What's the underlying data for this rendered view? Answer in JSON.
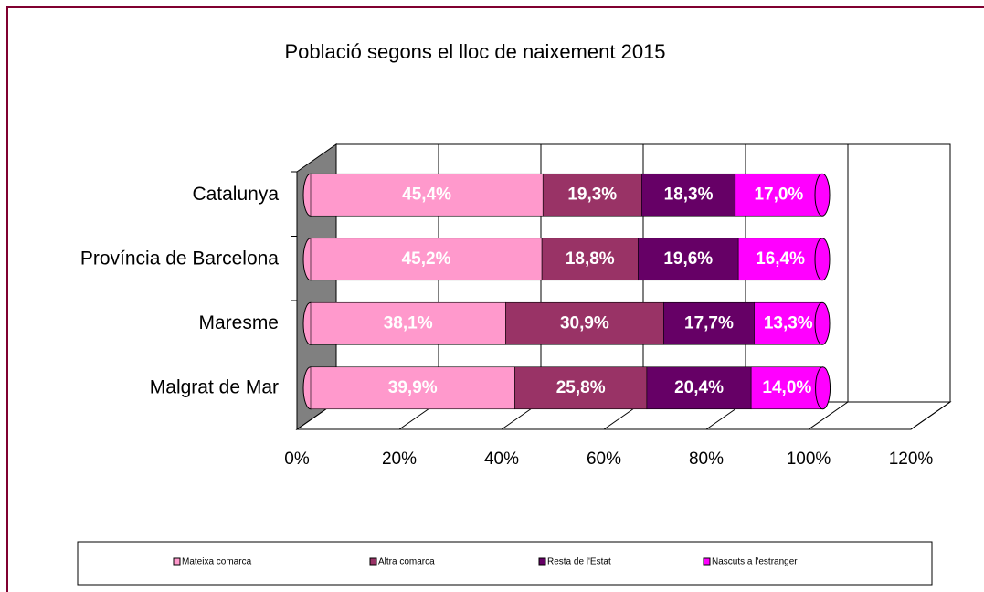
{
  "chart_data": {
    "type": "bar",
    "orientation": "horizontal",
    "stacked": true,
    "title": "Població segons el lloc de naixement 2015",
    "categories": [
      "Catalunya",
      "Província de Barcelona",
      "Maresme",
      "Malgrat de Mar"
    ],
    "series": [
      {
        "name": "Mateixa comarca",
        "color": "#ff99cc",
        "values": [
          45.4,
          45.2,
          38.1,
          39.9
        ],
        "value_labels": [
          "45,4%",
          "45,2%",
          "38,1%",
          "39,9%"
        ]
      },
      {
        "name": "Altra comarca",
        "color": "#993366",
        "values": [
          19.3,
          18.8,
          30.9,
          25.8
        ],
        "value_labels": [
          "19,3%",
          "18,8%",
          "30,9%",
          "25,8%"
        ]
      },
      {
        "name": "Resta de l'Estat",
        "color": "#660066",
        "values": [
          18.3,
          19.6,
          17.7,
          20.4
        ],
        "value_labels": [
          "18,3%",
          "19,6%",
          "17,7%",
          "20,4%"
        ]
      },
      {
        "name": "Nascuts a l'estranger",
        "color": "#ff00ff",
        "values": [
          17.0,
          16.4,
          13.3,
          14.0
        ],
        "value_labels": [
          "17,0%",
          "16,4%",
          "13,3%",
          "14,0%"
        ]
      }
    ],
    "xlim": [
      0,
      120
    ],
    "xticks": [
      {
        "value": 0,
        "label": "0%"
      },
      {
        "value": 20,
        "label": "20%"
      },
      {
        "value": 40,
        "label": "40%"
      },
      {
        "value": 60,
        "label": "60%"
      },
      {
        "value": 80,
        "label": "80%"
      },
      {
        "value": 100,
        "label": "100%"
      },
      {
        "value": 120,
        "label": "120%"
      }
    ],
    "grid": true,
    "legend": "bottom"
  }
}
